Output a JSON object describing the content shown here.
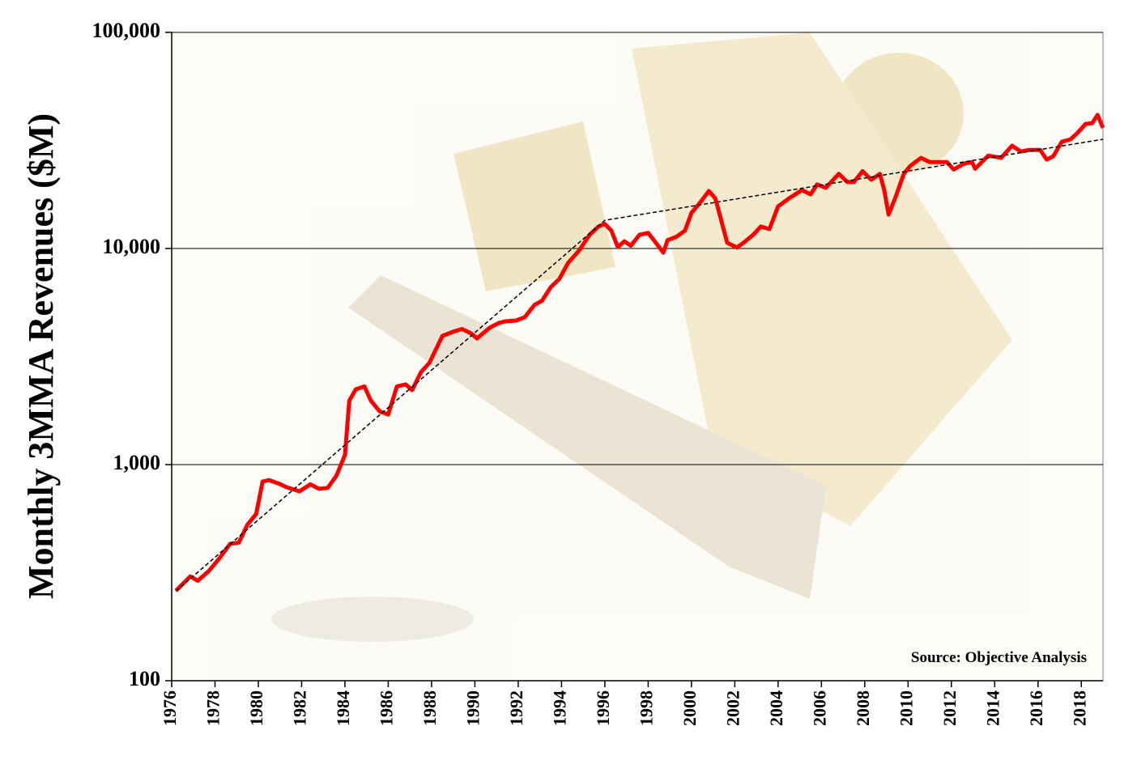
{
  "chart_data": {
    "type": "line",
    "y_label": "Monthly 3MMA Revenues ($M)",
    "annotation": "Source: Objective Analysis",
    "yscale": "log",
    "grid": true,
    "ylim": [
      100,
      100000
    ],
    "yticks": [
      100,
      {
        "value": 1000,
        "label": "1,000"
      },
      {
        "value": 10000,
        "label": "10,000"
      },
      {
        "value": 100000,
        "label": "100,000"
      }
    ],
    "xlim": [
      1976,
      2019
    ],
    "xticks": [
      1976,
      1978,
      1980,
      1982,
      1984,
      1986,
      1988,
      1990,
      1992,
      1994,
      1996,
      1998,
      2000,
      2002,
      2004,
      2006,
      2008,
      2010,
      2012,
      2014,
      2016,
      2018
    ],
    "color": "#ff0000",
    "x": [
      1976.2,
      1976.86,
      1977.2,
      1977.7,
      1978.2,
      1978.7,
      1979.1,
      1979.5,
      1979.9,
      1980.2,
      1980.5,
      1981.0,
      1981.3,
      1981.9,
      1982.4,
      1982.8,
      1983.2,
      1983.6,
      1984.0,
      1984.2,
      1984.5,
      1984.9,
      1985.2,
      1985.6,
      1986.0,
      1986.4,
      1986.8,
      1987.1,
      1987.5,
      1987.9,
      1988.5,
      1989.0,
      1989.4,
      1989.8,
      1990.1,
      1990.7,
      1991.1,
      1991.4,
      1991.9,
      1992.3,
      1992.75,
      1993.1,
      1993.5,
      1993.9,
      1994.3,
      1994.8,
      1995.3,
      1995.7,
      1996.0,
      1996.3,
      1996.6,
      1996.9,
      1997.2,
      1997.6,
      1998.0,
      1998.3,
      1998.7,
      1998.9,
      1999.3,
      1999.7,
      2000.0,
      2000.4,
      2000.8,
      2001.1,
      2001.35,
      2001.65,
      2002.1,
      2002.4,
      2002.85,
      2003.2,
      2003.6,
      2004.0,
      2004.5,
      2005.1,
      2005.5,
      2005.8,
      2006.2,
      2006.8,
      2007.2,
      2007.5,
      2007.9,
      2008.3,
      2008.7,
      2008.9,
      2009.1,
      2009.4,
      2009.8,
      2010.1,
      2010.6,
      2011.0,
      2011.45,
      2011.8,
      2012.1,
      2012.6,
      2012.95,
      2013.1,
      2013.7,
      2014.3,
      2014.8,
      2015.2,
      2015.6,
      2016.1,
      2016.4,
      2016.7,
      2017.1,
      2017.5,
      2017.8,
      2018.2,
      2018.5,
      2018.75,
      2019.0
    ],
    "values": [
      261,
      304,
      290,
      321,
      368,
      430,
      436,
      528,
      591,
      835,
      848,
      813,
      786,
      752,
      810,
      773,
      780,
      887,
      1110,
      1976,
      2230,
      2300,
      1976,
      1766,
      1706,
      2300,
      2350,
      2210,
      2670,
      2960,
      3940,
      4120,
      4240,
      4060,
      3840,
      4310,
      4520,
      4600,
      4640,
      4810,
      5480,
      5730,
      6620,
      7230,
      8570,
      9760,
      11580,
      12630,
      13000,
      12100,
      10160,
      10800,
      10300,
      11580,
      11800,
      10800,
      9570,
      10940,
      11320,
      12100,
      14630,
      16330,
      18450,
      17060,
      13760,
      10620,
      10100,
      10620,
      11580,
      12630,
      12300,
      15660,
      17060,
      18620,
      17800,
      19800,
      19100,
      22150,
      20300,
      20300,
      22800,
      20800,
      22150,
      18620,
      14360,
      17060,
      22150,
      24100,
      26260,
      25100,
      25100,
      25100,
      23200,
      24700,
      25100,
      23400,
      26900,
      26300,
      29900,
      28100,
      28600,
      28600,
      25800,
      26700,
      31200,
      32000,
      34100,
      37700,
      38000,
      41500,
      36100
    ],
    "trendline": {
      "color": "#000000",
      "x": [
        1976.2,
        1996.0,
        2019.0
      ],
      "values": [
        260,
        13500,
        32000
      ]
    }
  }
}
